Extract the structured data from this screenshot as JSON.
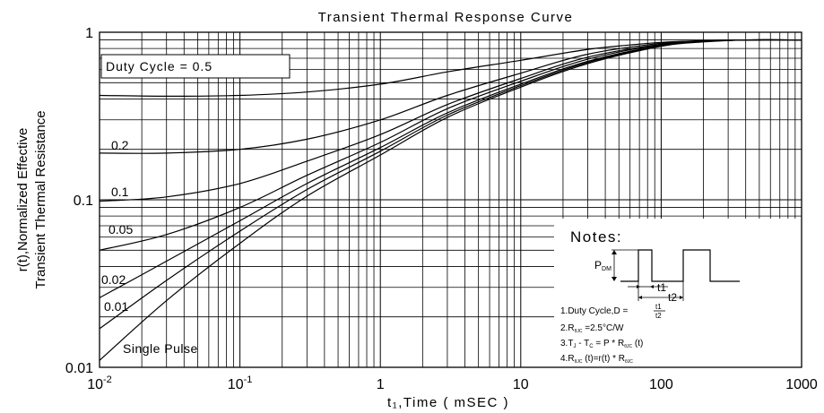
{
  "chart_data": {
    "type": "line",
    "title": "Transient Thermal Response Curve",
    "xlabel": "t₁,Time ( mSEC )",
    "ylabel_line1": "r(t),Normalized Effective",
    "ylabel_line2": "Transient Thermal Resistance",
    "x_scale": "log",
    "y_scale": "log",
    "xlim": [
      0.01,
      1000
    ],
    "ylim": [
      0.01,
      1
    ],
    "grid": true,
    "x_ticks": [
      {
        "value": 0.01,
        "base": "10",
        "exp": "-2"
      },
      {
        "value": 0.1,
        "base": "10",
        "exp": "-1"
      },
      {
        "value": 1,
        "label": "1"
      },
      {
        "value": 10,
        "label": "10"
      },
      {
        "value": 100,
        "label": "100"
      },
      {
        "value": 1000,
        "label": "1000"
      }
    ],
    "y_ticks": [
      {
        "value": 1,
        "label": "1"
      },
      {
        "value": 0.1,
        "label": "0.1"
      },
      {
        "value": 0.01,
        "label": "0.01"
      }
    ],
    "series": [
      {
        "name": "Duty Cycle = 0.5",
        "points": [
          [
            0.01,
            0.42
          ],
          [
            0.03,
            0.415
          ],
          [
            0.1,
            0.42
          ],
          [
            0.3,
            0.44
          ],
          [
            1,
            0.49
          ],
          [
            3,
            0.58
          ],
          [
            10,
            0.68
          ],
          [
            30,
            0.79
          ],
          [
            60,
            0.84
          ],
          [
            100,
            0.87
          ],
          [
            200,
            0.89
          ],
          [
            400,
            0.9
          ],
          [
            1000,
            0.9
          ]
        ]
      },
      {
        "name": "0.2",
        "points": [
          [
            0.01,
            0.19
          ],
          [
            0.03,
            0.19
          ],
          [
            0.1,
            0.2
          ],
          [
            0.3,
            0.23
          ],
          [
            1,
            0.3
          ],
          [
            3,
            0.42
          ],
          [
            10,
            0.57
          ],
          [
            30,
            0.74
          ],
          [
            100,
            0.86
          ],
          [
            200,
            0.89
          ],
          [
            400,
            0.9
          ],
          [
            1000,
            0.9
          ]
        ]
      },
      {
        "name": "0.1",
        "points": [
          [
            0.01,
            0.098
          ],
          [
            0.03,
            0.104
          ],
          [
            0.1,
            0.125
          ],
          [
            0.3,
            0.17
          ],
          [
            1,
            0.245
          ],
          [
            3,
            0.37
          ],
          [
            10,
            0.53
          ],
          [
            30,
            0.71
          ],
          [
            100,
            0.85
          ],
          [
            200,
            0.89
          ],
          [
            400,
            0.9
          ],
          [
            1000,
            0.9
          ]
        ]
      },
      {
        "name": "0.05",
        "points": [
          [
            0.01,
            0.05
          ],
          [
            0.03,
            0.062
          ],
          [
            0.1,
            0.09
          ],
          [
            0.3,
            0.14
          ],
          [
            1,
            0.22
          ],
          [
            3,
            0.35
          ],
          [
            10,
            0.51
          ],
          [
            30,
            0.69
          ],
          [
            100,
            0.845
          ],
          [
            200,
            0.885
          ],
          [
            400,
            0.9
          ],
          [
            1000,
            0.9
          ]
        ]
      },
      {
        "name": "0.02",
        "points": [
          [
            0.01,
            0.026
          ],
          [
            0.03,
            0.043
          ],
          [
            0.1,
            0.075
          ],
          [
            0.3,
            0.125
          ],
          [
            1,
            0.205
          ],
          [
            3,
            0.33
          ],
          [
            10,
            0.49
          ],
          [
            30,
            0.67
          ],
          [
            100,
            0.835
          ],
          [
            200,
            0.88
          ],
          [
            400,
            0.9
          ],
          [
            1000,
            0.9
          ]
        ]
      },
      {
        "name": "0.01",
        "points": [
          [
            0.01,
            0.017
          ],
          [
            0.03,
            0.033
          ],
          [
            0.1,
            0.065
          ],
          [
            0.3,
            0.115
          ],
          [
            1,
            0.195
          ],
          [
            3,
            0.32
          ],
          [
            10,
            0.48
          ],
          [
            30,
            0.66
          ],
          [
            100,
            0.83
          ],
          [
            200,
            0.88
          ],
          [
            400,
            0.9
          ],
          [
            1000,
            0.9
          ]
        ]
      },
      {
        "name": "Single Pulse",
        "points": [
          [
            0.01,
            0.011
          ],
          [
            0.03,
            0.025
          ],
          [
            0.1,
            0.055
          ],
          [
            0.3,
            0.105
          ],
          [
            1,
            0.185
          ],
          [
            3,
            0.31
          ],
          [
            10,
            0.47
          ],
          [
            30,
            0.65
          ],
          [
            100,
            0.825
          ],
          [
            200,
            0.875
          ],
          [
            400,
            0.9
          ],
          [
            1000,
            0.9
          ]
        ]
      }
    ],
    "notes": {
      "title": "Notes:",
      "pdm_main": "P",
      "pdm_sub": "DM",
      "t1": "t1",
      "t2": "t2",
      "note1_prefix": "1.Duty Cycle,D =",
      "note1_num": "t1",
      "note1_den": "t2",
      "note2_a": "2.R",
      "note2_sub": "θJC",
      "note2_b": " =2.5°C/W",
      "note3_a": "3.T",
      "note3_sub1": "J",
      "note3_b": " - T",
      "note3_sub2": "C",
      "note3_c": " = P * R",
      "note3_sub3": "θJC",
      "note3_d": " (t)",
      "note4_a": "4.R",
      "note4_sub1": "θJC",
      "note4_b": " (t)=r(t) * R",
      "note4_sub2": "θJC"
    }
  }
}
